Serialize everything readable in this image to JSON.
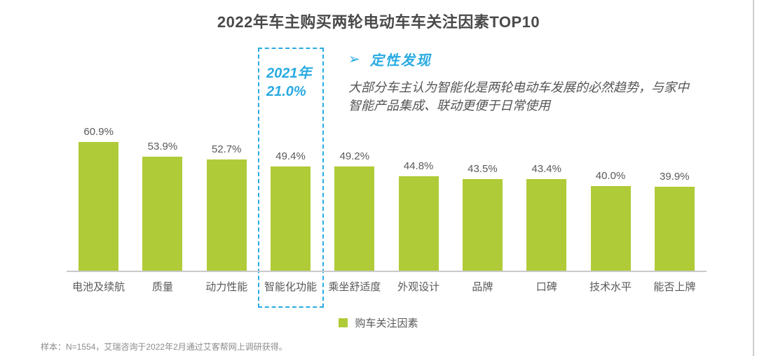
{
  "page": {
    "title": "2022年车主购买两轮电动车车关注因素TOP10",
    "footer": "样本：N=1554，艾瑞咨询于2022年2月通过艾客帮网上调研获得。"
  },
  "qualitative": {
    "arrow": "➢",
    "heading": "定性发现",
    "body_line1": "大部分车主认为智能化是两轮电动车发展的必然趋势，与家中",
    "body_line2": "智能产品集成、联动更便于日常使用"
  },
  "highlight": {
    "line1": "2021年",
    "line2": "21.0%"
  },
  "legend": {
    "label": "购车关注因素"
  },
  "colors": {
    "bar_green": "#afcb38",
    "accent_cyan": "#29abe2",
    "text_dark": "#4a4a4a",
    "text_gray": "#595959",
    "footer_gray": "#8c8c8c",
    "axis_gray": "#c9c9c9"
  },
  "chart_data": {
    "type": "bar",
    "title": "2022年车主购买两轮电动车车关注因素TOP10",
    "categories": [
      "电池及续航",
      "质量",
      "动力性能",
      "智能化功能",
      "乘坐舒适度",
      "外观设计",
      "品牌",
      "口碑",
      "技术水平",
      "能否上牌"
    ],
    "values": [
      60.9,
      53.9,
      52.7,
      49.4,
      49.2,
      44.8,
      43.5,
      43.4,
      40.0,
      39.9
    ],
    "unit": "%",
    "ylim": [
      0,
      65
    ],
    "grid": false,
    "legend_entries": [
      "购车关注因素"
    ],
    "legend_position": "bottom-center",
    "bar_color": "#afcb38",
    "highlight_category": "智能化功能",
    "highlight_note": "2021年 21.0%"
  }
}
